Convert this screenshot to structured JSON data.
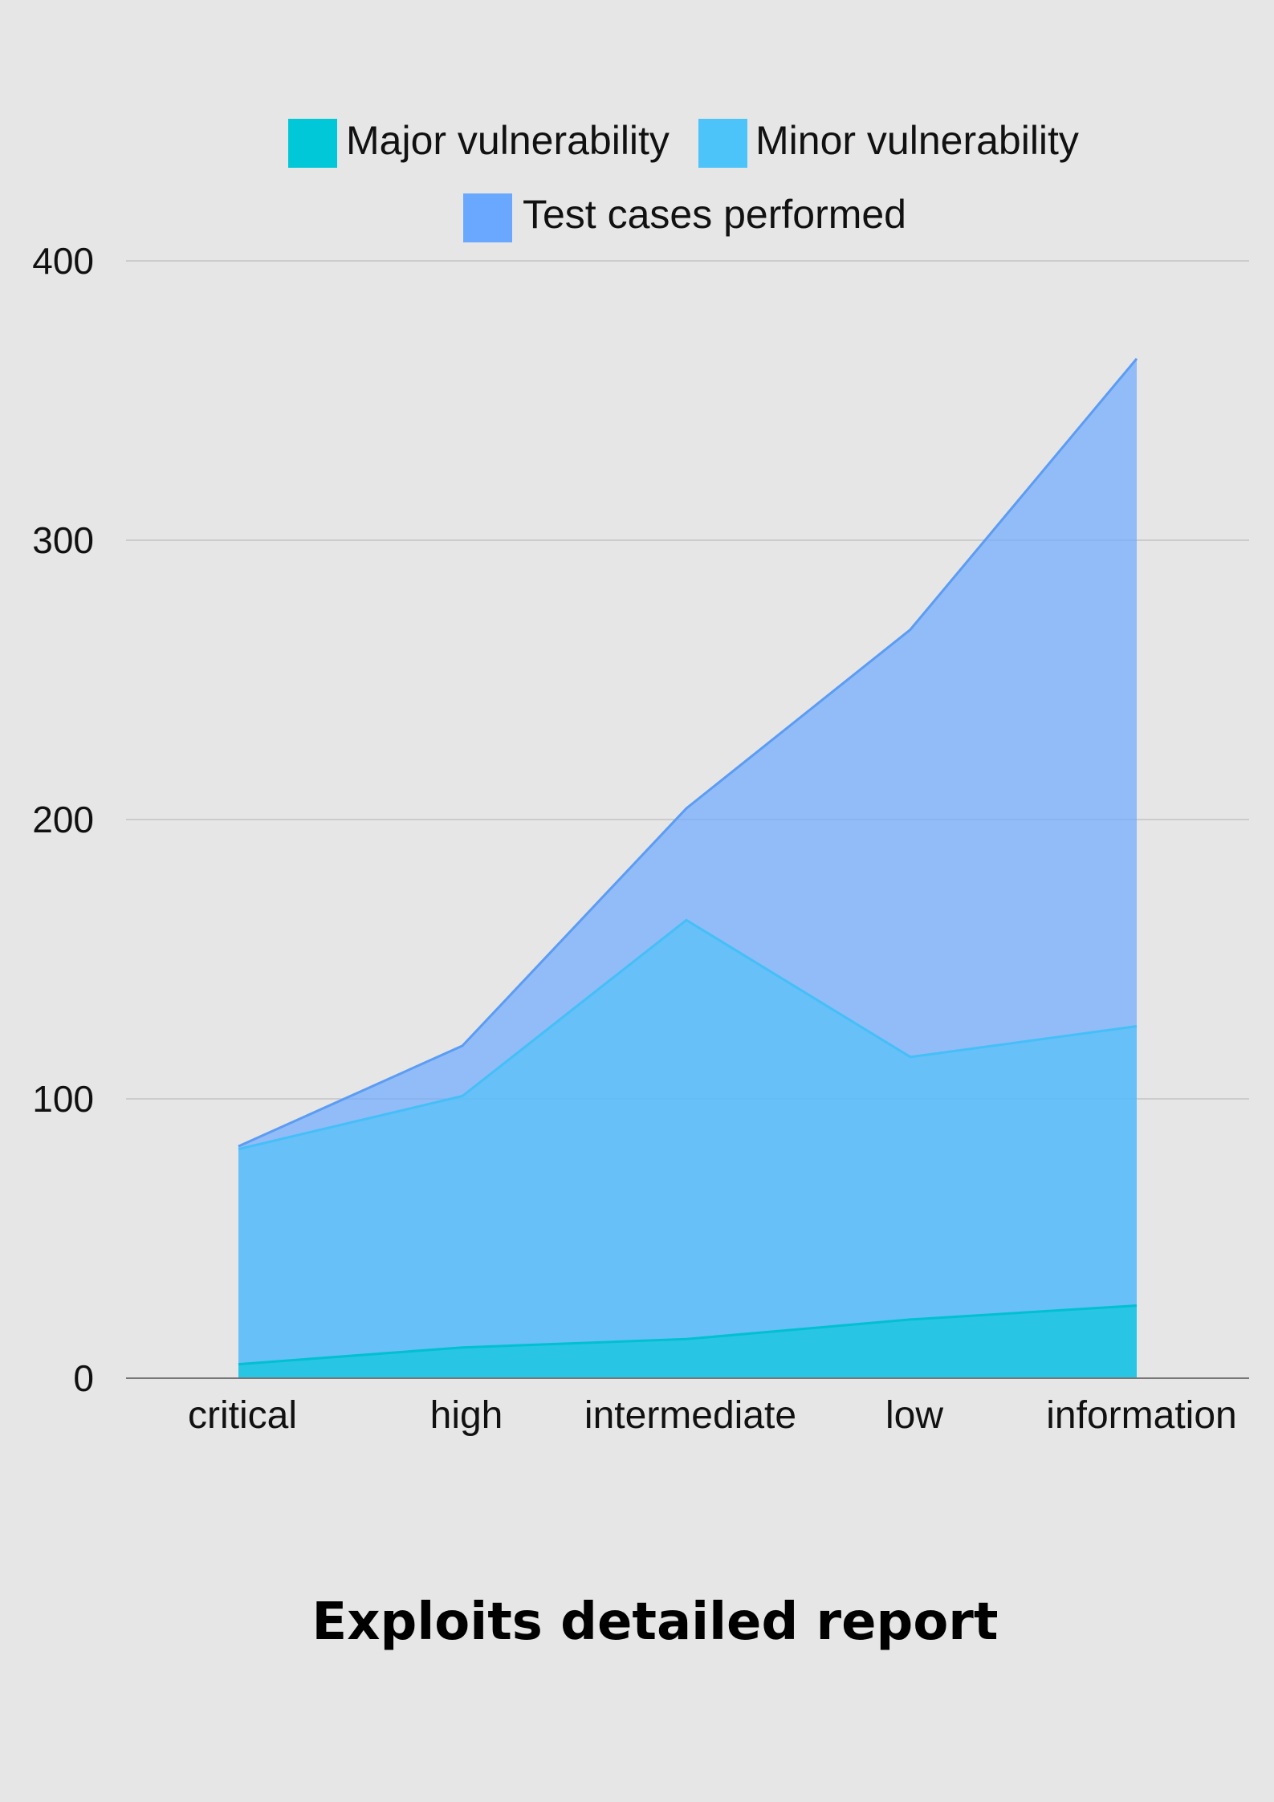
{
  "chart_data": {
    "type": "area",
    "title": "Exploits detailed report",
    "xlabel": "",
    "ylabel": "",
    "categories": [
      "critical",
      "high",
      "intermediate",
      "low",
      "information"
    ],
    "ylim": [
      0,
      400
    ],
    "yticks": [
      0,
      100,
      200,
      300,
      400
    ],
    "grid": true,
    "legend_position": "top-center",
    "stacked": false,
    "series": [
      {
        "name": "Test cases performed",
        "values": [
          83,
          119,
          204,
          268,
          365
        ],
        "color": "#6aa8ff"
      },
      {
        "name": "Minor vulnerability",
        "values": [
          82,
          101,
          164,
          115,
          126
        ],
        "color": "#4dc4f9"
      },
      {
        "name": "Major vulnerability",
        "values": [
          5,
          11,
          14,
          21,
          26
        ],
        "color": "#00c8d8"
      }
    ],
    "legend": [
      {
        "name": "Major vulnerability",
        "color": "#00c8d8"
      },
      {
        "name": "Minor vulnerability",
        "color": "#4dc4f9"
      },
      {
        "name": "Test cases performed",
        "color": "#6aa8ff"
      }
    ]
  }
}
